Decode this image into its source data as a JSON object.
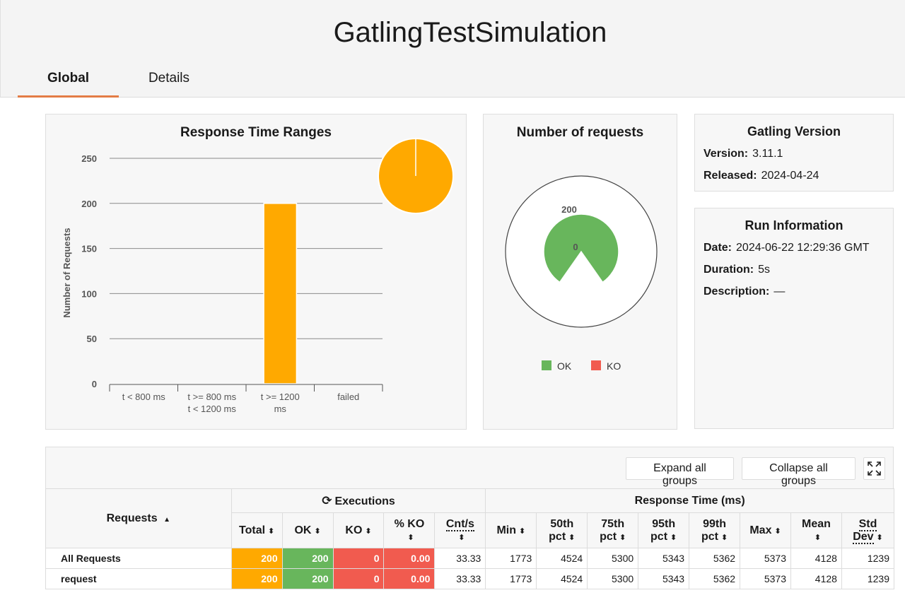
{
  "header": {
    "title": "GatlingTestSimulation"
  },
  "tabs": [
    {
      "label": "Global"
    },
    {
      "label": "Details"
    }
  ],
  "response_time_ranges": {
    "title": "Response Time Ranges",
    "ylabel": "Number of Requests",
    "colors": {
      "bar": "#ffa900",
      "pie": "#ffa900"
    }
  },
  "number_of_requests": {
    "title": "Number of requests",
    "gauge_max_label": "200",
    "gauge_min_label": "0",
    "legend": [
      {
        "label": "OK",
        "color": "#68b65c"
      },
      {
        "label": "KO",
        "color": "#f15b4f"
      }
    ]
  },
  "gatling_version": {
    "title": "Gatling Version",
    "version_label": "Version:",
    "version": "3.11.1",
    "released_label": "Released:",
    "released": "2024-04-24"
  },
  "run_information": {
    "title": "Run Information",
    "date_label": "Date:",
    "date": "2024-06-22 12:29:36 GMT",
    "duration_label": "Duration:",
    "duration": "5s",
    "description_label": "Description:",
    "description": "—"
  },
  "stats": {
    "expand_label": "Expand all groups",
    "collapse_label": "Collapse all groups",
    "requests_header": "Requests",
    "executions_header": "Executions",
    "response_time_header": "Response Time (ms)",
    "columns": {
      "total": "Total",
      "ok": "OK",
      "ko": "KO",
      "pct_ko": "% KO",
      "cnt_s": "Cnt/s",
      "min": "Min",
      "p50a": "50th",
      "p50b": "pct",
      "p75a": "75th",
      "p75b": "pct",
      "p95a": "95th",
      "p95b": "pct",
      "p99a": "99th",
      "p99b": "pct",
      "max": "Max",
      "mean": "Mean",
      "std_a": "Std",
      "std_b": "Dev"
    },
    "rows": [
      {
        "name": "All Requests",
        "total": "200",
        "ok": "200",
        "ko": "0",
        "pct_ko": "0.00",
        "cnt_s": "33.33",
        "min": "1773",
        "p50": "4524",
        "p75": "5300",
        "p95": "5343",
        "p99": "5362",
        "max": "5373",
        "mean": "4128",
        "std": "1239"
      },
      {
        "name": "request",
        "total": "200",
        "ok": "200",
        "ko": "0",
        "pct_ko": "0.00",
        "cnt_s": "33.33",
        "min": "1773",
        "p50": "4524",
        "p75": "5300",
        "p95": "5343",
        "p99": "5362",
        "max": "5373",
        "mean": "4128",
        "std": "1239"
      }
    ]
  },
  "chart_data": [
    {
      "type": "bar",
      "title": "Response Time Ranges",
      "xlabel": "",
      "ylabel": "Number of Requests",
      "categories": [
        "t < 800 ms",
        "t >= 800 ms t < 1200 ms",
        "t >= 1200 ms",
        "failed"
      ],
      "category_lines": [
        [
          "t < 800 ms"
        ],
        [
          "t >= 800 ms",
          "t < 1200 ms"
        ],
        [
          "t >= 1200",
          "ms"
        ],
        [
          "failed"
        ]
      ],
      "values": [
        0,
        0,
        200,
        0
      ],
      "ylim": [
        0,
        250
      ],
      "yticks": [
        0,
        50,
        100,
        150,
        200,
        250
      ],
      "grid": true
    },
    {
      "type": "pie",
      "labels": [
        "t >= 1200 ms"
      ],
      "values": [
        200
      ]
    },
    {
      "type": "gauge",
      "series": [
        {
          "name": "OK",
          "value": 200
        },
        {
          "name": "KO",
          "value": 0
        }
      ],
      "min": 0,
      "max": 200
    }
  ]
}
